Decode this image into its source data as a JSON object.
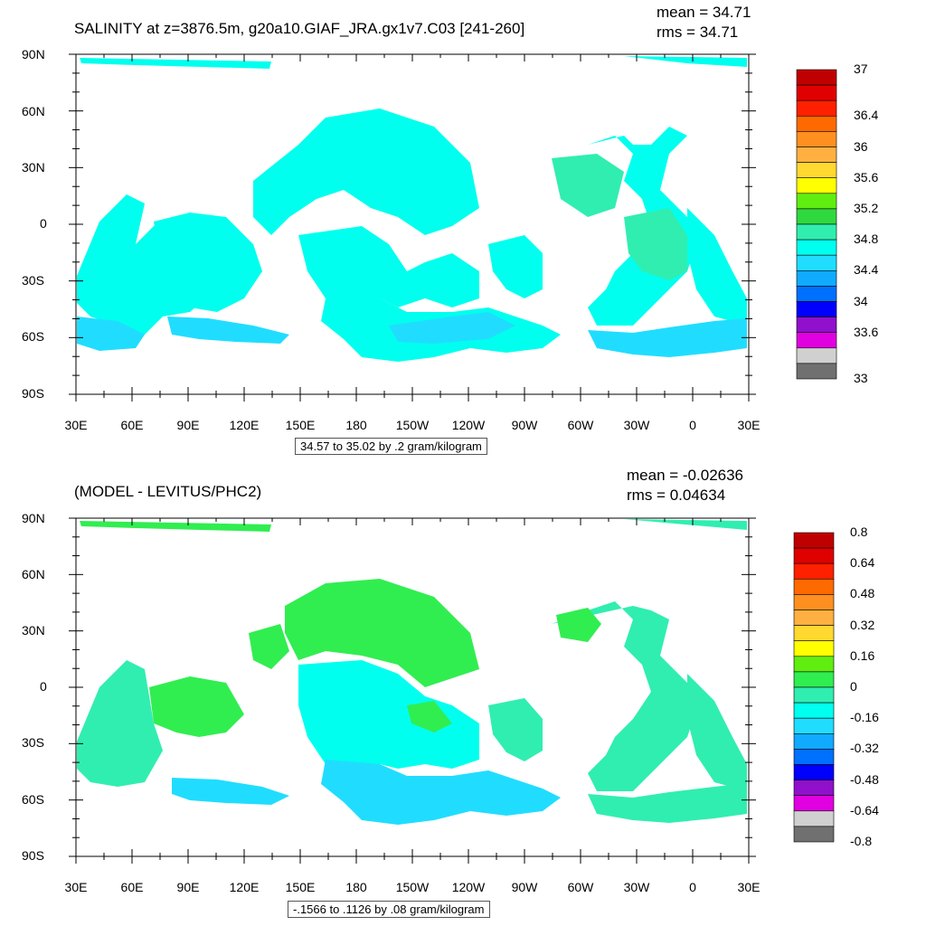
{
  "panels": [
    {
      "id": "top",
      "title": "SALINITY at z=3876.5m, g20a10.GIAF_JRA.gx1v7.C03 [241-260]",
      "mean": "mean = 34.71",
      "rms": "rms = 34.71",
      "range": "34.57 to 35.02 by .2 gram/kilogram",
      "lat_labels": [
        "90N",
        "60N",
        "30N",
        "0",
        "30S",
        "60S",
        "90S"
      ],
      "lon_labels": [
        "30E",
        "60E",
        "90E",
        "120E",
        "150E",
        "180",
        "150W",
        "120W",
        "90W",
        "60W",
        "30W",
        "0",
        "30E"
      ],
      "colorbar": {
        "colors": [
          "#c00000",
          "#e00000",
          "#ff2000",
          "#ff6a00",
          "#ff9020",
          "#ffb040",
          "#ffd830",
          "#ffff00",
          "#60ee10",
          "#30d840",
          "#30eeb0",
          "#00ffee",
          "#20ddff",
          "#10aaff",
          "#0070ff",
          "#0000ff",
          "#9010cc",
          "#e000e0",
          "#d0d0d0",
          "#707070"
        ],
        "labels": [
          "37",
          "36.4",
          "36",
          "35.6",
          "35.2",
          "34.8",
          "34.4",
          "34",
          "33.6",
          "33"
        ],
        "label_index": [
          0,
          3,
          5,
          7,
          9,
          11,
          13,
          15,
          17,
          20
        ]
      }
    },
    {
      "id": "bottom",
      "title": "(MODEL - LEVITUS/PHC2)",
      "mean": "mean = -0.02636",
      "rms": "rms = 0.04634",
      "range": "-.1566 to .1126 by .08 gram/kilogram",
      "lat_labels": [
        "90N",
        "60N",
        "30N",
        "0",
        "30S",
        "60S",
        "90S"
      ],
      "lon_labels": [
        "30E",
        "60E",
        "90E",
        "120E",
        "150E",
        "180",
        "150W",
        "120W",
        "90W",
        "60W",
        "30W",
        "0",
        "30E"
      ],
      "colorbar": {
        "colors": [
          "#c00000",
          "#e00000",
          "#ff2000",
          "#ff6a00",
          "#ff9020",
          "#ffb040",
          "#ffd830",
          "#ffff00",
          "#60ee10",
          "#30ee50",
          "#30eeb0",
          "#00ffee",
          "#20ddff",
          "#10aaff",
          "#0070ff",
          "#0000ff",
          "#9010cc",
          "#e000e0",
          "#d0d0d0",
          "#707070"
        ],
        "labels": [
          "0.8",
          "0.64",
          "0.48",
          "0.32",
          "0.16",
          "0",
          "-0.16",
          "-0.32",
          "-0.48",
          "-0.64",
          "-0.8"
        ],
        "label_index": [
          0,
          2,
          4,
          6,
          8,
          10,
          12,
          14,
          16,
          18,
          20
        ]
      }
    }
  ]
}
